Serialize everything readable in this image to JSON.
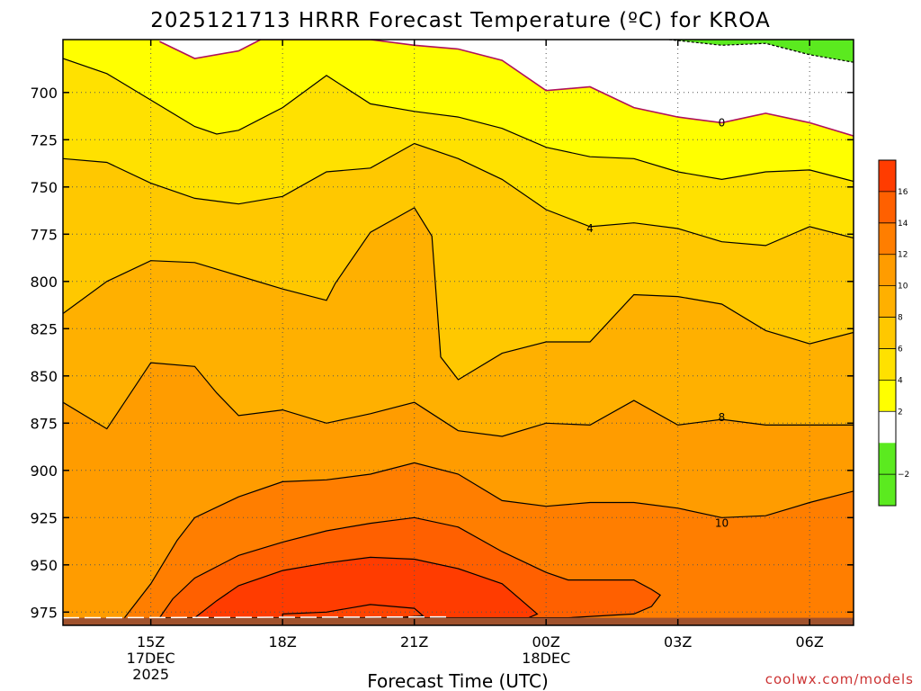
{
  "chart_data": {
    "type": "contour",
    "title": "2025121713 HRRR Forecast Temperature (ºC) for KROA",
    "xlabel": "Forecast Time (UTC)",
    "ylabel": "",
    "credit": "coolwx.com/models",
    "x_hours_range": [
      13,
      31
    ],
    "y_range_hpa": [
      672,
      982
    ],
    "x_ticks": [
      {
        "hour": 15,
        "lines": [
          "15Z",
          "17DEC",
          "2025"
        ]
      },
      {
        "hour": 18,
        "lines": [
          "18Z"
        ]
      },
      {
        "hour": 21,
        "lines": [
          "21Z"
        ]
      },
      {
        "hour": 24,
        "lines": [
          "00Z",
          "18DEC"
        ]
      },
      {
        "hour": 27,
        "lines": [
          "03Z"
        ]
      },
      {
        "hour": 30,
        "lines": [
          "06Z"
        ]
      }
    ],
    "y_ticks": [
      700,
      725,
      750,
      775,
      800,
      825,
      850,
      875,
      900,
      925,
      950,
      975
    ],
    "grid": true,
    "colorbar": {
      "boundaries": [
        -4,
        -2,
        0,
        2,
        4,
        6,
        8,
        10,
        12,
        14,
        16,
        18
      ],
      "colors": [
        "#5bea1f",
        "#5bea1f",
        "#ffffff",
        "#ffff00",
        "#ffe100",
        "#ffc800",
        "#ffb000",
        "#ff9c00",
        "#ff7e00",
        "#ff6000",
        "#ff3c00"
      ],
      "labels": [
        "−2",
        "2",
        "4",
        "6",
        "8",
        "10",
        "12",
        "14",
        "16"
      ],
      "label_values": [
        -2,
        2,
        4,
        6,
        8,
        10,
        12,
        14,
        16
      ]
    },
    "contour_labels": [
      {
        "text": "0",
        "hour": 28.0,
        "p": 716
      },
      {
        "text": "4",
        "hour": 25.0,
        "p": 772
      },
      {
        "text": "8",
        "hour": 28.0,
        "p": 872
      },
      {
        "text": "10",
        "hour": 28.0,
        "p": 928
      }
    ],
    "contours": [
      {
        "level": 0,
        "color": "#b0105a",
        "hours": [
          15.2,
          16.0,
          17.0,
          17.5,
          20.0,
          21.0,
          22.0,
          23.0,
          24.0,
          25.0,
          26.0,
          27.0,
          28.0,
          29.0,
          30.0,
          31.0
        ],
        "p": [
          673,
          682,
          678,
          672,
          672,
          675,
          677,
          683,
          699,
          697,
          708,
          713,
          716,
          711,
          716,
          723
        ]
      },
      {
        "level": -2,
        "color": "#000000",
        "dashed": true,
        "hours": [
          26.8,
          28.0,
          29.0,
          30.0,
          31.0
        ],
        "p": [
          672,
          675,
          674,
          680,
          684
        ]
      },
      {
        "level": 2,
        "color": "#000000",
        "hours": [
          13.0,
          14.0,
          16.0,
          16.5,
          17.0,
          18.0,
          19.0,
          20.0,
          21.0,
          22.0,
          23.0,
          24.0,
          25.0,
          26.0,
          27.0,
          28.0,
          29.0,
          30.0,
          31.0
        ],
        "p": [
          682,
          690,
          718,
          722,
          720,
          708,
          691,
          706,
          710,
          713,
          719,
          729,
          734,
          735,
          742,
          746,
          742,
          741,
          747
        ]
      },
      {
        "level": 4,
        "color": "#000000",
        "hours": [
          13.0,
          14.0,
          15.0,
          16.0,
          17.0,
          18.0,
          19.0,
          20.0,
          21.0,
          22.0,
          23.0,
          24.0,
          25.0,
          26.0,
          27.0,
          28.0,
          29.0,
          30.0,
          31.0
        ],
        "p": [
          735,
          737,
          748,
          756,
          759,
          755,
          742,
          740,
          727,
          735,
          746,
          762,
          771,
          769,
          772,
          779,
          781,
          771,
          777
        ]
      },
      {
        "level": 6,
        "color": "#000000",
        "hours": [
          13.0,
          14.0,
          15.0,
          16.0,
          17.0,
          18.0,
          19.0,
          19.2,
          20.0,
          21.0,
          21.4,
          21.6,
          22.0,
          23.0,
          24.0,
          25.0,
          26.0,
          27.0,
          28.0,
          29.0,
          30.0,
          31.0
        ],
        "p": [
          817,
          800,
          789,
          790,
          797,
          804,
          810,
          801,
          774,
          761,
          776,
          840,
          852,
          838,
          832,
          832,
          807,
          808,
          812,
          826,
          833,
          827
        ]
      },
      {
        "level": 8,
        "color": "#000000",
        "hours": [
          13.0,
          14.0,
          15.0,
          16.0,
          16.5,
          17.0,
          18.0,
          19.0,
          20.0,
          21.0,
          22.0,
          23.0,
          24.0,
          25.0,
          26.0,
          27.0,
          28.0,
          29.0,
          30.0,
          31.0
        ],
        "p": [
          864,
          878,
          843,
          845,
          859,
          871,
          868,
          875,
          870,
          864,
          879,
          882,
          875,
          876,
          863,
          876,
          873,
          876,
          876,
          876
        ]
      },
      {
        "level": 10,
        "color": "#000000",
        "hours": [
          14.4,
          15.0,
          15.6,
          16.0,
          17.0,
          18.0,
          19.0,
          20.0,
          21.0,
          22.0,
          23.0,
          24.0,
          25.0,
          26.0,
          27.0,
          28.0,
          29.0,
          30.0,
          31.0
        ],
        "p": [
          978,
          960,
          937,
          925,
          914,
          906,
          905,
          902,
          896,
          902,
          916,
          919,
          917,
          917,
          920,
          925,
          924,
          917,
          911
        ]
      },
      {
        "level": 12,
        "color": "#000000",
        "closed": true,
        "hours": [
          15.2,
          15.5,
          16.0,
          16.5,
          17.0,
          18.0,
          19.0,
          20.0,
          21.0,
          22.0,
          23.0,
          24.0,
          24.5,
          25.0,
          26.0,
          26.4,
          26.6,
          26.4,
          26.0,
          24.5,
          20.0,
          17.0,
          15.2
        ],
        "p": [
          978,
          968,
          957,
          951,
          945,
          938,
          932,
          928,
          925,
          930,
          943,
          954,
          958,
          958,
          958,
          963,
          966,
          972,
          976,
          978,
          978,
          978,
          978
        ]
      },
      {
        "level": 14,
        "color": "#000000",
        "closed": true,
        "hours": [
          16.0,
          16.5,
          17.0,
          18.0,
          19.0,
          20.0,
          21.0,
          22.0,
          23.0,
          23.5,
          23.8,
          23.5,
          22.0,
          20.0,
          17.0,
          16.0
        ],
        "p": [
          978,
          969,
          961,
          953,
          949,
          946,
          947,
          952,
          960,
          970,
          976,
          979,
          979,
          979,
          979,
          978
        ]
      },
      {
        "level": 16,
        "color": "#000000",
        "closed": true,
        "hours": [
          18.0,
          19.0,
          20.0,
          21.0,
          21.2,
          20.0,
          18.0
        ],
        "p": [
          976,
          975,
          971,
          973,
          977,
          979,
          979
        ]
      }
    ]
  }
}
